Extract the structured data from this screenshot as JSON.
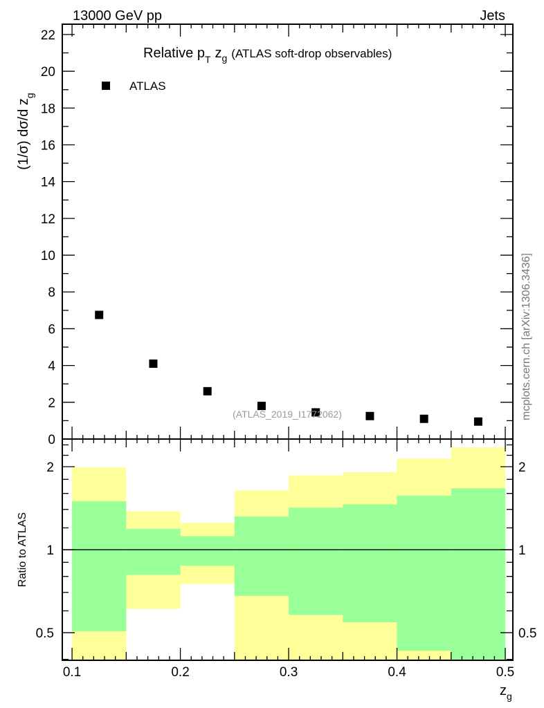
{
  "header": {
    "left": "13000 GeV pp",
    "right": "Jets"
  },
  "side_label": "mcplots.cern.ch [arXiv:1306.3436]",
  "colors": {
    "yellow": "#ffff99",
    "green": "#99ff99",
    "marker": "#000000",
    "watermark": "#999999"
  },
  "chart_data": [
    {
      "type": "scatter",
      "title": "Relative p",
      "title_sub": "T",
      "title_var": "z",
      "title_var_sub": "g",
      "title_rest": "(ATLAS soft-drop observables)",
      "ylabel": "(1/σ) dσ/d z",
      "ylabel_sub": "g",
      "xlim": [
        0.091,
        0.507
      ],
      "ylim": [
        0,
        22.56
      ],
      "yticks": [
        0,
        2,
        4,
        6,
        8,
        10,
        12,
        14,
        16,
        18,
        20,
        22
      ],
      "legend": {
        "label": "ATLAS",
        "placement": "top-left"
      },
      "watermark": "(ATLAS_2019_I1772062)",
      "x": [
        0.125,
        0.175,
        0.225,
        0.275,
        0.325,
        0.375,
        0.425,
        0.475
      ],
      "y": [
        6.75,
        4.1,
        2.6,
        1.8,
        1.45,
        1.25,
        1.1,
        0.95
      ]
    },
    {
      "type": "area",
      "ylabel": "Ratio to ATLAS",
      "xlabel": "z",
      "xlabel_sub": "g",
      "yscale": "log",
      "xlim": [
        0.091,
        0.507
      ],
      "ylim": [
        0.397,
        2.52
      ],
      "yticks": [
        0.5,
        1,
        2
      ],
      "ytick_labels": [
        "0.5",
        "1",
        "2"
      ],
      "xticks": [
        0.1,
        0.2,
        0.3,
        0.4,
        0.5
      ],
      "xtick_labels": [
        "0.1",
        "0.2",
        "0.3",
        "0.4",
        "0.5"
      ],
      "bin_edges": [
        0.1,
        0.15,
        0.2,
        0.25,
        0.3,
        0.35,
        0.4,
        0.45,
        0.5
      ],
      "yellow_band": {
        "low": [
          0.39,
          0.61,
          0.75,
          0.39,
          0.39,
          0.39,
          0.39,
          0.39
        ],
        "high": [
          1.99,
          1.38,
          1.25,
          1.64,
          1.86,
          1.91,
          2.14,
          2.35
        ]
      },
      "green_band": {
        "low": [
          0.506,
          0.81,
          0.875,
          0.68,
          0.58,
          0.545,
          0.43,
          0.39
        ],
        "high": [
          1.5,
          1.19,
          1.12,
          1.32,
          1.42,
          1.46,
          1.57,
          1.67
        ]
      },
      "reference_line": 1
    }
  ]
}
